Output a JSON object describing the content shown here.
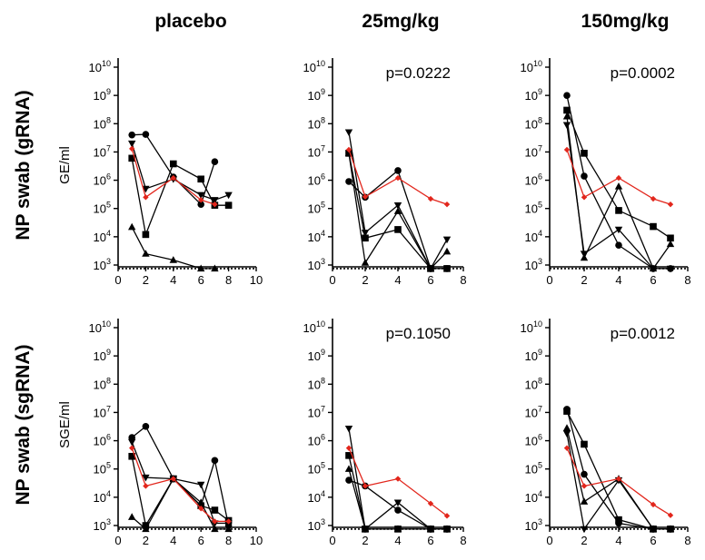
{
  "column_titles": [
    "placebo",
    "25mg/kg",
    "150mg/kg"
  ],
  "row_titles": [
    "NP swab (gRNA)",
    "NP swab (sgRNA)"
  ],
  "y_labels": [
    "GE/ml",
    "SGE/ml"
  ],
  "colors": {
    "treated": "#000000",
    "reference": "#e2261c"
  },
  "chart_data": [
    {
      "id": "gRNA-placebo",
      "type": "line",
      "row": 0,
      "col": 0,
      "xlim": [
        0,
        10
      ],
      "xticks": [
        0,
        2,
        4,
        6,
        8,
        10
      ],
      "ylim": [
        1000,
        10000000000
      ],
      "yscale": "log",
      "ylabel": "GE/ml",
      "p_value": "",
      "detection_limit": 750,
      "series": [
        {
          "marker": "circle",
          "color": "#000000",
          "x": [
            1,
            2,
            4,
            6,
            7
          ],
          "y": [
            40000000,
            42000000,
            1300000,
            140000,
            4500000
          ]
        },
        {
          "marker": "square",
          "color": "#000000",
          "x": [
            1,
            2,
            4,
            6,
            7,
            8
          ],
          "y": [
            6000000,
            12000,
            3800000,
            1100000,
            130000,
            130000
          ]
        },
        {
          "marker": "triangle-up",
          "color": "#000000",
          "x": [
            1,
            2,
            4,
            6,
            7
          ],
          "y": [
            22000,
            2500,
            1500,
            750,
            750
          ]
        },
        {
          "marker": "triangle-down",
          "color": "#000000",
          "x": [
            1,
            2,
            4,
            6,
            7,
            8
          ],
          "y": [
            20000000,
            500000,
            1100000,
            300000,
            200000,
            300000
          ]
        },
        {
          "marker": "diamond",
          "color": "#e2261c",
          "x": [
            1,
            2,
            4,
            6,
            7
          ],
          "y": [
            13000000,
            250000,
            1200000,
            200000,
            140000
          ]
        }
      ]
    },
    {
      "id": "gRNA-25",
      "type": "line",
      "row": 0,
      "col": 1,
      "xlim": [
        0,
        8
      ],
      "xticks": [
        0,
        2,
        4,
        6,
        8
      ],
      "ylim": [
        1000,
        10000000000
      ],
      "yscale": "log",
      "ylabel": "",
      "p_value": "p=0.0222",
      "detection_limit": 750,
      "series": [
        {
          "marker": "circle",
          "color": "#000000",
          "x": [
            1,
            2,
            4,
            6,
            7
          ],
          "y": [
            900000,
            250000,
            2200000,
            750,
            750
          ]
        },
        {
          "marker": "square",
          "color": "#000000",
          "x": [
            1,
            2,
            4,
            6,
            7
          ],
          "y": [
            9000000,
            9000,
            18000,
            750,
            750
          ]
        },
        {
          "marker": "triangle-up",
          "color": "#000000",
          "x": [
            1,
            2,
            4,
            6,
            7
          ],
          "y": [
            9000000,
            1200,
            80000,
            750,
            3000
          ]
        },
        {
          "marker": "triangle-down",
          "color": "#000000",
          "x": [
            1,
            2,
            4,
            6,
            7
          ],
          "y": [
            50000000,
            14000,
            130000,
            750,
            8000
          ]
        },
        {
          "marker": "diamond",
          "color": "#e2261c",
          "x": [
            1,
            2,
            4,
            6,
            7
          ],
          "y": [
            12000000,
            260000,
            1200000,
            220000,
            140000
          ]
        }
      ]
    },
    {
      "id": "gRNA-150",
      "type": "line",
      "row": 0,
      "col": 2,
      "xlim": [
        0,
        8
      ],
      "xticks": [
        0,
        2,
        4,
        6,
        8
      ],
      "ylim": [
        1000,
        10000000000
      ],
      "yscale": "log",
      "ylabel": "",
      "p_value": "p=0.0002",
      "detection_limit": 750,
      "series": [
        {
          "marker": "circle",
          "color": "#000000",
          "x": [
            1,
            2,
            4,
            6,
            7
          ],
          "y": [
            1000000000,
            1400000,
            5000,
            750,
            750
          ]
        },
        {
          "marker": "square",
          "color": "#000000",
          "x": [
            1,
            2,
            4,
            6,
            7
          ],
          "y": [
            300000000,
            9000000,
            85000,
            23000,
            9000
          ]
        },
        {
          "marker": "triangle-up",
          "color": "#000000",
          "x": [
            1,
            2,
            4,
            6,
            7
          ],
          "y": [
            180000000,
            1800,
            600000,
            750,
            5500
          ]
        },
        {
          "marker": "triangle-down",
          "color": "#000000",
          "x": [
            1,
            2,
            4,
            6,
            7
          ],
          "y": [
            90000000,
            2500,
            18000,
            750,
            750
          ]
        },
        {
          "marker": "diamond",
          "color": "#e2261c",
          "x": [
            1,
            2,
            4,
            6,
            7
          ],
          "y": [
            12000000,
            250000,
            1200000,
            220000,
            140000
          ]
        }
      ]
    },
    {
      "id": "sgRNA-placebo",
      "type": "line",
      "row": 1,
      "col": 0,
      "xlim": [
        0,
        10
      ],
      "xticks": [
        0,
        2,
        4,
        6,
        8,
        10
      ],
      "ylim": [
        1000,
        10000000000
      ],
      "yscale": "log",
      "ylabel": "SGE/ml",
      "p_value": "",
      "detection_limit": 750,
      "series": [
        {
          "marker": "circle",
          "color": "#000000",
          "x": [
            1,
            2,
            4,
            6,
            7,
            8
          ],
          "y": [
            1300000,
            3200000,
            45000,
            5000,
            200000,
            1000
          ]
        },
        {
          "marker": "square",
          "color": "#000000",
          "x": [
            1,
            2,
            4,
            6,
            7,
            8
          ],
          "y": [
            280000,
            1000,
            45000,
            5000,
            3500,
            1500
          ]
        },
        {
          "marker": "triangle-up",
          "color": "#000000",
          "x": [
            1,
            2,
            4,
            6,
            7,
            8
          ],
          "y": [
            2000,
            750,
            45000,
            6500,
            750,
            750
          ]
        },
        {
          "marker": "triangle-down",
          "color": "#000000",
          "x": [
            1,
            2,
            4,
            6,
            7,
            8
          ],
          "y": [
            900000,
            50000,
            45000,
            28000,
            1200,
            1200
          ]
        },
        {
          "marker": "diamond",
          "color": "#e2261c",
          "x": [
            1,
            2,
            4,
            6,
            7,
            8
          ],
          "y": [
            550000,
            25000,
            45000,
            4000,
            1400,
            1400
          ]
        }
      ]
    },
    {
      "id": "sgRNA-25",
      "type": "line",
      "row": 1,
      "col": 1,
      "xlim": [
        0,
        8
      ],
      "xticks": [
        0,
        2,
        4,
        6,
        8
      ],
      "ylim": [
        1000,
        10000000000
      ],
      "yscale": "log",
      "ylabel": "",
      "p_value": "p=0.1050",
      "detection_limit": 750,
      "series": [
        {
          "marker": "circle",
          "color": "#000000",
          "x": [
            1,
            2,
            4,
            6,
            7
          ],
          "y": [
            40000,
            25000,
            3500,
            750,
            750
          ]
        },
        {
          "marker": "square",
          "color": "#000000",
          "x": [
            1,
            2,
            4,
            6,
            7
          ],
          "y": [
            300000,
            750,
            750,
            750,
            750
          ]
        },
        {
          "marker": "triangle-up",
          "color": "#000000",
          "x": [
            1,
            2,
            4,
            6,
            7
          ],
          "y": [
            100000,
            750,
            750,
            750,
            750
          ]
        },
        {
          "marker": "triangle-down",
          "color": "#000000",
          "x": [
            1,
            2,
            4,
            6,
            7
          ],
          "y": [
            2700000,
            750,
            6500,
            750,
            750
          ]
        },
        {
          "marker": "diamond",
          "color": "#e2261c",
          "x": [
            1,
            2,
            4,
            6,
            7
          ],
          "y": [
            550000,
            25000,
            45000,
            6000,
            2200
          ]
        }
      ]
    },
    {
      "id": "sgRNA-150",
      "type": "line",
      "row": 1,
      "col": 2,
      "xlim": [
        0,
        8
      ],
      "xticks": [
        0,
        2,
        4,
        6,
        8
      ],
      "ylim": [
        1000,
        10000000000
      ],
      "yscale": "log",
      "ylabel": "",
      "p_value": "p=0.0012",
      "detection_limit": 750,
      "series": [
        {
          "marker": "circle",
          "color": "#000000",
          "x": [
            1,
            2,
            4,
            6,
            7
          ],
          "y": [
            13000000,
            65000,
            1200,
            750,
            750
          ]
        },
        {
          "marker": "square",
          "color": "#000000",
          "x": [
            1,
            2,
            4,
            6,
            7
          ],
          "y": [
            11000000,
            750000,
            1600,
            750,
            750
          ]
        },
        {
          "marker": "triangle-up",
          "color": "#000000",
          "x": [
            1,
            2,
            4,
            6,
            7
          ],
          "y": [
            2800000,
            7000,
            45000,
            750,
            750
          ]
        },
        {
          "marker": "triangle-down",
          "color": "#000000",
          "x": [
            1,
            2,
            4,
            6,
            7
          ],
          "y": [
            1800000,
            750,
            40000,
            750,
            750
          ]
        },
        {
          "marker": "diamond",
          "color": "#e2261c",
          "x": [
            1,
            2,
            4,
            6,
            7
          ],
          "y": [
            550000,
            25000,
            45000,
            5500,
            2300
          ]
        }
      ]
    }
  ]
}
